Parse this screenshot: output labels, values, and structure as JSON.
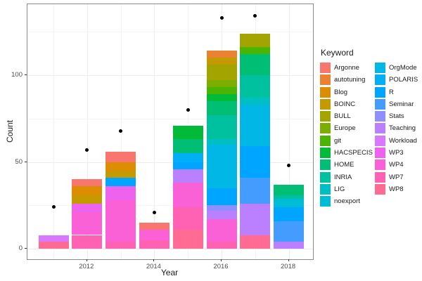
{
  "chart_data": {
    "type": "bar",
    "subtype": "stacked-bars-with-point-overlay",
    "title": "",
    "xlabel": "Year",
    "ylabel": "Count",
    "x_axis_ticks": [
      2012,
      2014,
      2016,
      2018
    ],
    "x_minor_gridlines": [
      2011,
      2013,
      2015,
      2017
    ],
    "y_axis_ticks": [
      0,
      50,
      100
    ],
    "y_minor_gridlines": [
      25,
      75,
      125
    ],
    "ylim": [
      -6,
      141
    ],
    "grid": true,
    "legend_position": "right",
    "point_values": [
      24,
      57,
      68,
      21,
      80,
      133,
      134,
      48
    ],
    "bar_totals": [
      8,
      40,
      56,
      15,
      71,
      114,
      124,
      37
    ],
    "bars": [
      {
        "year": 2011,
        "total": 8,
        "segments": [
          {
            "keyword": "WP8",
            "value": 4
          },
          {
            "keyword": "Workload",
            "value": 4
          }
        ]
      },
      {
        "year": 2012,
        "total": 40,
        "segments": [
          {
            "keyword": "WP7",
            "value": 8
          },
          {
            "keyword": "WP4",
            "value": 13
          },
          {
            "keyword": "WP3",
            "value": 5
          },
          {
            "keyword": "BOINC",
            "value": 5
          },
          {
            "keyword": "Blog",
            "value": 5
          },
          {
            "keyword": "Argonne",
            "value": 4
          }
        ]
      },
      {
        "year": 2013,
        "total": 56,
        "segments": [
          {
            "keyword": "WP7",
            "value": 4
          },
          {
            "keyword": "WP4",
            "value": 24
          },
          {
            "keyword": "WP3",
            "value": 8
          },
          {
            "keyword": "R",
            "value": 5
          },
          {
            "keyword": "BOINC",
            "value": 4
          },
          {
            "keyword": "Blog",
            "value": 5
          },
          {
            "keyword": "Argonne",
            "value": 6
          }
        ]
      },
      {
        "year": 2014,
        "total": 15,
        "segments": [
          {
            "keyword": "WP7",
            "value": 5
          },
          {
            "keyword": "WP4",
            "value": 6
          },
          {
            "keyword": "Argonne",
            "value": 4
          }
        ]
      },
      {
        "year": 2015,
        "total": 71,
        "segments": [
          {
            "keyword": "WP8",
            "value": 11
          },
          {
            "keyword": "WP7",
            "value": 13
          },
          {
            "keyword": "WP4",
            "value": 14
          },
          {
            "keyword": "Teaching",
            "value": 8
          },
          {
            "keyword": "R",
            "value": 4
          },
          {
            "keyword": "POLARIS",
            "value": 5
          },
          {
            "keyword": "HOME",
            "value": 8
          },
          {
            "keyword": "HACSPECIS",
            "value": 8
          }
        ]
      },
      {
        "year": 2016,
        "total": 114,
        "segments": [
          {
            "keyword": "WP7",
            "value": 4
          },
          {
            "keyword": "WP4",
            "value": 13
          },
          {
            "keyword": "Teaching",
            "value": 5
          },
          {
            "keyword": "Stats",
            "value": 3
          },
          {
            "keyword": "R",
            "value": 10
          },
          {
            "keyword": "OrgMode",
            "value": 25
          },
          {
            "keyword": "LIG",
            "value": 3
          },
          {
            "keyword": "INRIA",
            "value": 14
          },
          {
            "keyword": "HOME",
            "value": 8
          },
          {
            "keyword": "HACSPECIS",
            "value": 4
          },
          {
            "keyword": "git",
            "value": 4
          },
          {
            "keyword": "Europe",
            "value": 4
          },
          {
            "keyword": "BULL",
            "value": 9
          },
          {
            "keyword": "BOINC",
            "value": 4
          },
          {
            "keyword": "autotuning",
            "value": 4
          }
        ]
      },
      {
        "year": 2017,
        "total": 124,
        "segments": [
          {
            "keyword": "WP8",
            "value": 8
          },
          {
            "keyword": "Teaching",
            "value": 18
          },
          {
            "keyword": "Seminar",
            "value": 15
          },
          {
            "keyword": "R",
            "value": 18
          },
          {
            "keyword": "OrgMode",
            "value": 24
          },
          {
            "keyword": "LIG",
            "value": 4
          },
          {
            "keyword": "INRIA",
            "value": 13
          },
          {
            "keyword": "HOME",
            "value": 12
          },
          {
            "keyword": "git",
            "value": 4
          },
          {
            "keyword": "BULL",
            "value": 8
          }
        ]
      },
      {
        "year": 2018,
        "total": 37,
        "segments": [
          {
            "keyword": "Teaching",
            "value": 4
          },
          {
            "keyword": "Seminar",
            "value": 12
          },
          {
            "keyword": "R",
            "value": 8
          },
          {
            "keyword": "noexport",
            "value": 5
          },
          {
            "keyword": "INRIA",
            "value": 2
          },
          {
            "keyword": "HOME",
            "value": 6
          }
        ]
      }
    ],
    "legend": {
      "title": "Keyword",
      "column1": [
        "Argonne",
        "autotuning",
        "Blog",
        "BOINC",
        "BULL",
        "Europe",
        "git",
        "HACSPECIS",
        "HOME",
        "INRIA",
        "LIG",
        "noexport"
      ],
      "column2": [
        "OrgMode",
        "POLARIS",
        "R",
        "Seminar",
        "Stats",
        "Teaching",
        "Workload",
        "WP3",
        "WP4",
        "WP7",
        "WP8"
      ]
    },
    "keyword_colors": {
      "Argonne": "#F8766D",
      "autotuning": "#EA8331",
      "Blog": "#DC8E00",
      "BOINC": "#C49A00",
      "BULL": "#A4A400",
      "Europe": "#7CAE00",
      "git": "#49B500",
      "HACSPECIS": "#00BA38",
      "HOME": "#00BF74",
      "INRIA": "#00C19F",
      "LIG": "#00BFC4",
      "noexport": "#00BCD4",
      "OrgMode": "#00B7E5",
      "POLARIS": "#00AFF5",
      "R": "#00A5FF",
      "Seminar": "#459CFF",
      "Stats": "#8F90FF",
      "Teaching": "#BB80FF",
      "Workload": "#D878FE",
      "WP3": "#ED63EE",
      "WP4": "#FB61D7",
      "WP7": "#FF62B2",
      "WP8": "#FF6B92"
    }
  }
}
